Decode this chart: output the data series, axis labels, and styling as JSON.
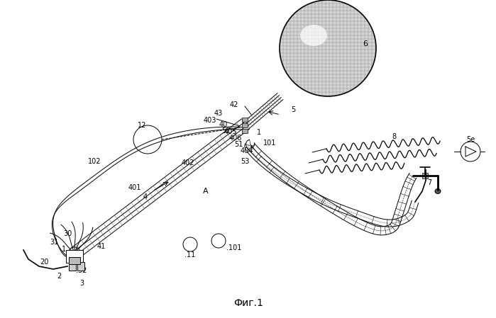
{
  "caption": "Фиг.1",
  "bg_color": "#ffffff",
  "line_color": "#000000",
  "gray_fill": "#c8c8c8",
  "light_gray": "#e0e0e0"
}
